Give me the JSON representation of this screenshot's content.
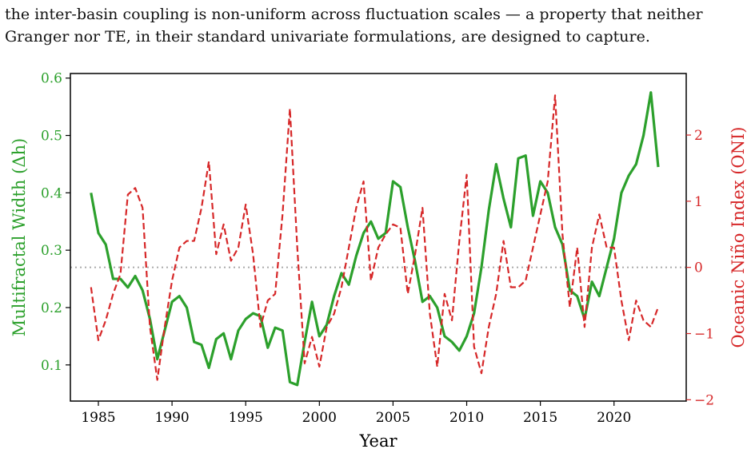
{
  "document": {
    "lines": [
      "the inter-basin coupling is non-uniform across fluctuation scales — a property that neither",
      "Granger nor TE, in their standard univariate formulations, are designed to capture."
    ]
  },
  "chart_data": {
    "type": "line",
    "xlabel": "Year",
    "ylabel": "Multifractal Width (Δh)",
    "y2label": "Oceanic Niño Index (ONI)",
    "x": [
      1984.5,
      1985,
      1985.5,
      1986,
      1986.5,
      1987,
      1987.5,
      1988,
      1988.5,
      1989,
      1989.5,
      1990,
      1990.5,
      1991,
      1991.5,
      1992,
      1992.5,
      1993,
      1993.5,
      1994,
      1994.5,
      1995,
      1995.5,
      1996,
      1996.5,
      1997,
      1997.5,
      1998,
      1998.5,
      1999,
      1999.5,
      2000,
      2000.5,
      2001,
      2001.5,
      2002,
      2002.5,
      2003,
      2003.5,
      2004,
      2004.5,
      2005,
      2005.5,
      2006,
      2006.5,
      2007,
      2007.5,
      2008,
      2008.5,
      2009,
      2009.5,
      2010,
      2010.5,
      2011,
      2011.5,
      2012,
      2012.5,
      2013,
      2013.5,
      2014,
      2014.5,
      2015,
      2015.5,
      2016,
      2016.5,
      2017,
      2017.5,
      2018,
      2018.5,
      2019,
      2019.5,
      2020,
      2020.5,
      2021,
      2021.5,
      2022,
      2022.5,
      2023
    ],
    "series": [
      {
        "name": "Multifractal Width (Δh)",
        "color": "#2ca02c",
        "dashed": false,
        "values": [
          0.4,
          0.33,
          0.31,
          0.25,
          0.25,
          0.235,
          0.255,
          0.23,
          0.18,
          0.11,
          0.16,
          0.21,
          0.22,
          0.2,
          0.14,
          0.135,
          0.095,
          0.145,
          0.155,
          0.11,
          0.16,
          0.18,
          0.19,
          0.185,
          0.13,
          0.165,
          0.16,
          0.07,
          0.065,
          0.14,
          0.21,
          0.15,
          0.17,
          0.22,
          0.26,
          0.24,
          0.29,
          0.33,
          0.35,
          0.32,
          0.33,
          0.42,
          0.41,
          0.34,
          0.28,
          0.21,
          0.22,
          0.2,
          0.15,
          0.14,
          0.125,
          0.15,
          0.19,
          0.27,
          0.37,
          0.45,
          0.39,
          0.34,
          0.46,
          0.465,
          0.36,
          0.42,
          0.4,
          0.34,
          0.31,
          0.23,
          0.22,
          0.18,
          0.245,
          0.22,
          0.27,
          0.32,
          0.4,
          0.43,
          0.45,
          0.5,
          0.575,
          0.445
        ]
      },
      {
        "name": "Oceanic Niño Index (ONI)",
        "color": "#d62728",
        "dashed": true,
        "axis": "y2",
        "values": [
          -0.3,
          -1.1,
          -0.8,
          -0.4,
          -0.1,
          1.1,
          1.2,
          0.9,
          -0.9,
          -1.7,
          -0.9,
          -0.2,
          0.3,
          0.4,
          0.4,
          0.9,
          1.6,
          0.2,
          0.65,
          0.1,
          0.3,
          0.95,
          0.2,
          -0.9,
          -0.5,
          -0.4,
          0.8,
          2.4,
          0.3,
          -1.45,
          -1.05,
          -1.5,
          -0.9,
          -0.7,
          -0.3,
          0.3,
          0.9,
          1.3,
          -0.2,
          0.3,
          0.5,
          0.65,
          0.6,
          -0.4,
          0.2,
          0.9,
          -0.7,
          -1.5,
          -0.4,
          -0.8,
          0.4,
          1.4,
          -1.2,
          -1.6,
          -0.9,
          -0.4,
          0.4,
          -0.3,
          -0.3,
          -0.2,
          0.3,
          0.8,
          1.3,
          2.6,
          0.5,
          -0.6,
          0.3,
          -0.9,
          0.3,
          0.8,
          0.3,
          0.3,
          -0.5,
          -1.1,
          -0.5,
          -0.8,
          -0.9,
          -0.6
        ]
      }
    ],
    "reference_line_y2": 0,
    "reference_color": "#aaaaaa",
    "xlim": [
      1983.1,
      2024.9
    ],
    "xticks": [
      1985,
      1990,
      1995,
      2000,
      2005,
      2010,
      2015,
      2020
    ],
    "ylim": [
      0.037,
      0.608
    ],
    "yticks": [
      0.1,
      0.2,
      0.3,
      0.4,
      0.5,
      0.6
    ],
    "y2lim": [
      -2.02,
      2.93
    ],
    "y2ticks": [
      {
        "value": -2,
        "label": "−2"
      },
      {
        "value": -1,
        "label": "−1"
      },
      0,
      1,
      2
    ]
  }
}
